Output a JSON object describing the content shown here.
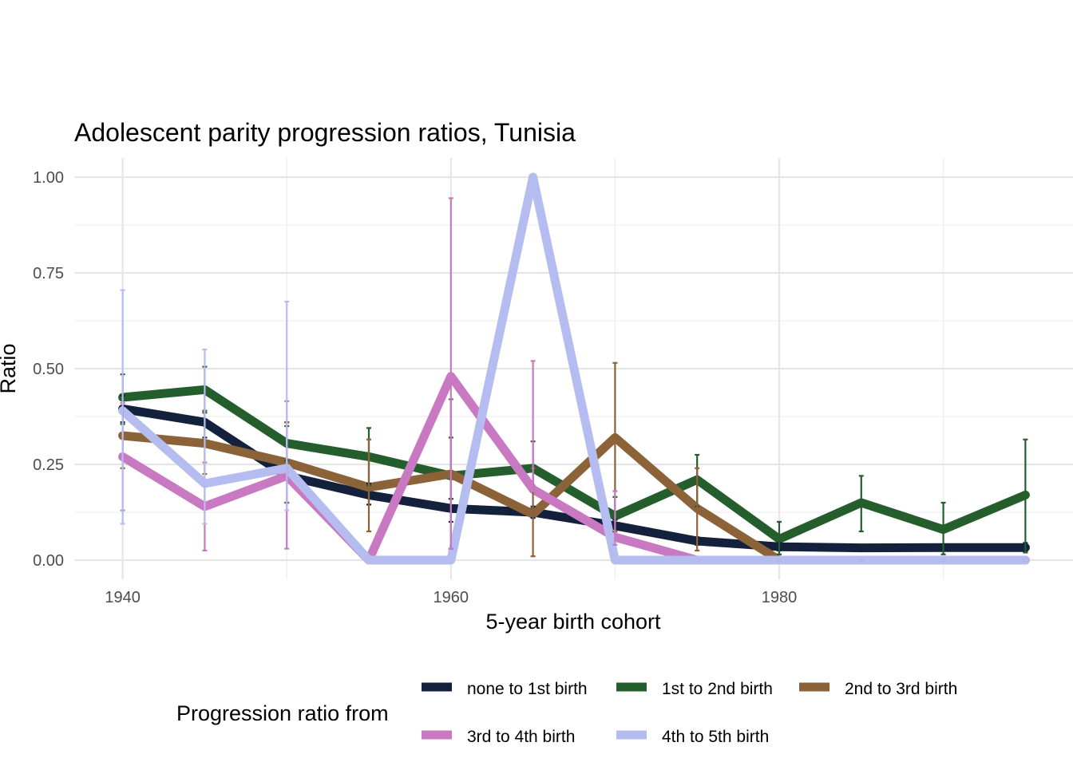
{
  "chart_data": {
    "type": "line",
    "title": "Adolescent parity progression ratios,  Tunisia",
    "xlabel": "5-year birth cohort",
    "ylabel": "Ratio",
    "xlim": [
      1937.1,
      1997.9
    ],
    "ylim": [
      -0.05,
      1.05
    ],
    "x_ticks": [
      1940,
      1960,
      1980
    ],
    "x_tick_labels": [
      "1940",
      "1960",
      "1980"
    ],
    "y_ticks": [
      0,
      0.25,
      0.5,
      0.75,
      1.0
    ],
    "y_tick_labels": [
      "0.00",
      "0.25",
      "0.50",
      "0.75",
      "1.00"
    ],
    "x": [
      1940,
      1945,
      1950,
      1955,
      1960,
      1965,
      1970,
      1975,
      1980,
      1985,
      1990,
      1995
    ],
    "legend": {
      "title": "Progression ratio from",
      "position": "bottom"
    },
    "series": [
      {
        "name": "none to 1st birth",
        "color": "#14213d",
        "values": [
          0.395,
          0.36,
          0.22,
          0.17,
          0.135,
          0.125,
          0.09,
          0.05,
          0.035,
          0.032,
          0.033,
          0.033
        ],
        "lower": [
          0.36,
          0.32,
          0.15,
          0.145,
          0.1,
          0.11,
          0.075,
          0.04,
          0.025,
          0.025,
          0.025,
          0.02
        ],
        "upper": [
          0.43,
          0.39,
          0.36,
          0.2,
          0.16,
          0.14,
          0.105,
          0.06,
          0.045,
          0.04,
          0.04,
          0.045
        ]
      },
      {
        "name": "1st to 2nd birth",
        "color": "#255e2d",
        "values": [
          0.425,
          0.445,
          0.305,
          0.27,
          0.22,
          0.24,
          0.115,
          0.21,
          0.055,
          0.15,
          0.08,
          0.17
        ],
        "lower": [
          0.355,
          0.385,
          0.26,
          0.195,
          0.16,
          0.18,
          0.075,
          0.14,
          0.015,
          0.075,
          0.015,
          0.02
        ],
        "upper": [
          0.485,
          0.505,
          0.35,
          0.345,
          0.32,
          0.31,
          0.165,
          0.275,
          0.1,
          0.22,
          0.15,
          0.315
        ]
      },
      {
        "name": "2nd to 3rd birth",
        "color": "#8c6239",
        "values": [
          0.325,
          0.305,
          0.255,
          0.19,
          0.225,
          0.12,
          0.32,
          0.135,
          0.0,
          0.0,
          0.0,
          0.0
        ],
        "lower": [
          0.24,
          0.225,
          0.15,
          0.075,
          0.03,
          0.01,
          0.075,
          0.025,
          0.0,
          0.0,
          0.0,
          0.0
        ],
        "upper": [
          0.41,
          0.39,
          0.36,
          0.315,
          0.42,
          0.24,
          0.515,
          0.24,
          0.0,
          0.0,
          0.0,
          0.0
        ]
      },
      {
        "name": "3rd to 4th birth",
        "color": "#c879c2",
        "values": [
          0.27,
          0.14,
          0.22,
          0.0,
          0.48,
          0.185,
          0.06,
          0.0,
          0.0,
          null,
          null,
          null
        ],
        "lower": [
          0.13,
          0.025,
          0.03,
          0.0,
          0.03,
          0.18,
          0.04,
          0.0,
          0.0,
          null,
          null,
          null
        ],
        "upper": [
          0.41,
          0.255,
          0.415,
          0.0,
          0.945,
          0.52,
          0.18,
          0.0,
          0.0,
          null,
          null,
          null
        ]
      },
      {
        "name": "4th to 5th birth",
        "color": "#b5bdf0",
        "values": [
          0.39,
          0.2,
          0.24,
          0.0,
          0.0,
          1.0,
          0.0,
          0.0,
          0.0,
          0.0,
          0.0,
          0.0
        ],
        "lower": [
          0.095,
          0.095,
          0.13,
          0.0,
          0.0,
          1.0,
          0.0,
          0.0,
          0.0,
          0.0,
          0.0,
          0.0
        ],
        "upper": [
          0.705,
          0.55,
          0.675,
          0.0,
          0.0,
          1.0,
          0.0,
          0.0,
          0.0,
          0.0,
          0.0,
          0.0
        ]
      }
    ]
  }
}
